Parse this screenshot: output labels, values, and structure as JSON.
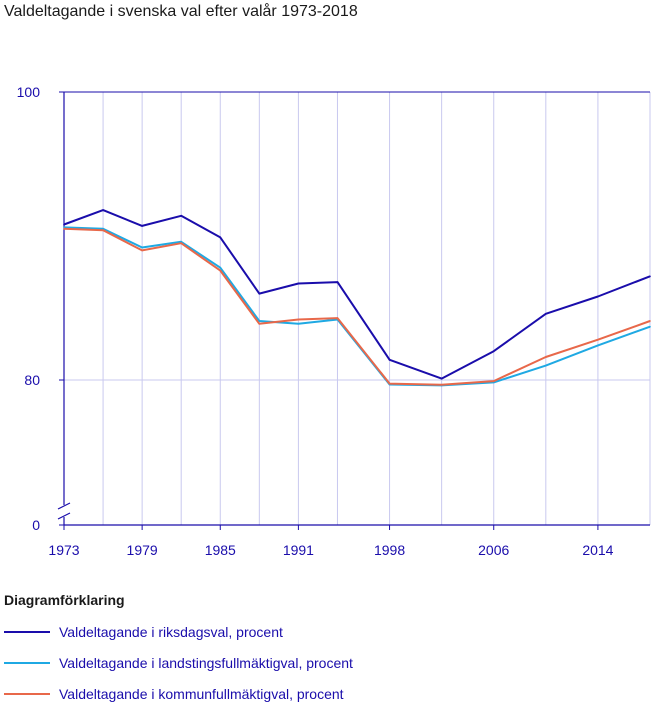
{
  "title": "Valdeltagande i svenska val efter valår 1973-2018",
  "legend_title": "Diagramförklaring",
  "colors": {
    "axis": "#1a0dab",
    "grid": "#c9c9ef",
    "tick_text": "#1a0dab"
  },
  "chart_data": {
    "type": "line",
    "x": [
      1973,
      1976,
      1979,
      1982,
      1985,
      1988,
      1991,
      1994,
      1998,
      2002,
      2006,
      2010,
      2014,
      2018
    ],
    "xticks": [
      "1973",
      "1979",
      "1985",
      "1991",
      "1998",
      "2006",
      "2014"
    ],
    "yticks": [
      "100",
      "80",
      "0"
    ],
    "ylim": [
      0,
      100
    ],
    "axis_break": true,
    "grid": true,
    "series": [
      {
        "name": "Valdeltagande i riksdagsval, procent",
        "color": "#1a0dab",
        "values": [
          90.8,
          91.8,
          90.7,
          91.4,
          89.9,
          86.0,
          86.7,
          86.8,
          81.4,
          80.1,
          82.0,
          84.6,
          85.8,
          87.2
        ]
      },
      {
        "name": "Valdeltagande i landstingsfullmäktigval, procent",
        "color": "#1fa9e3",
        "values": [
          90.6,
          90.5,
          89.2,
          89.6,
          87.8,
          84.1,
          83.9,
          84.2,
          77.5,
          77.0,
          78.7,
          81.0,
          82.4,
          83.7
        ]
      },
      {
        "name": "Valdeltagande i kommunfullmäktigval, procent",
        "color": "#e8684a",
        "values": [
          90.5,
          90.4,
          89.0,
          89.5,
          87.6,
          83.9,
          84.2,
          84.3,
          78.0,
          77.4,
          79.4,
          81.6,
          82.8,
          84.1
        ]
      }
    ]
  }
}
